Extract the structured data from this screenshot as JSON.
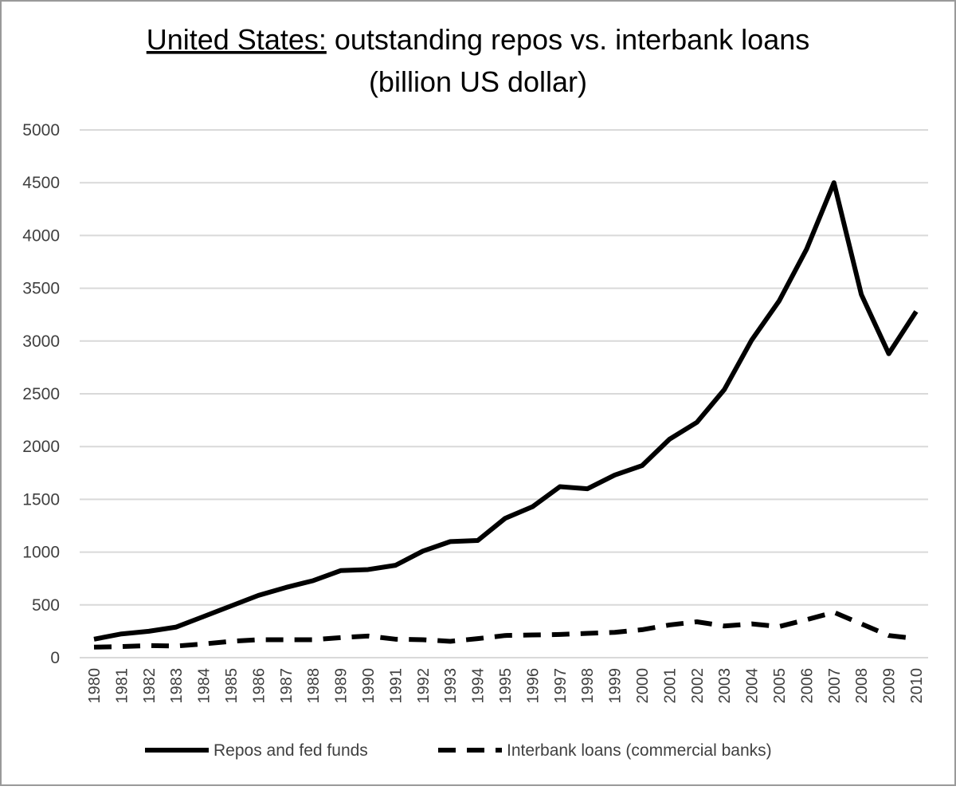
{
  "chart_data": {
    "type": "line",
    "title": {
      "emphasis": "United States:",
      "text": "outstanding repos vs. interbank loans"
    },
    "subtitle": "(billion US dollar)",
    "categories": [
      "1980",
      "1981",
      "1982",
      "1983",
      "1984",
      "1985",
      "1986",
      "1987",
      "1988",
      "1989",
      "1990",
      "1991",
      "1992",
      "1993",
      "1994",
      "1995",
      "1996",
      "1997",
      "1998",
      "1999",
      "2000",
      "2001",
      "2002",
      "2003",
      "2004",
      "2005",
      "2006",
      "2007",
      "2008",
      "2009",
      "2010"
    ],
    "series": [
      {
        "name": "Repos and fed funds",
        "color": "#000000",
        "dash": "solid",
        "values": [
          175,
          225,
          250,
          290,
          390,
          490,
          590,
          665,
          730,
          825,
          835,
          875,
          1010,
          1100,
          1110,
          1320,
          1430,
          1620,
          1600,
          1730,
          1820,
          2070,
          2230,
          2540,
          3010,
          3380,
          3870,
          4500,
          3440,
          2880,
          3280
        ]
      },
      {
        "name": "Interbank loans (commercial banks)",
        "color": "#000000",
        "dash": "dashed",
        "values": [
          100,
          105,
          115,
          110,
          130,
          155,
          170,
          170,
          170,
          190,
          205,
          175,
          170,
          155,
          180,
          210,
          215,
          220,
          230,
          240,
          265,
          310,
          340,
          300,
          320,
          295,
          360,
          430,
          320,
          210,
          180
        ]
      }
    ],
    "ylim": [
      0,
      5000
    ],
    "yticks": [
      0,
      500,
      1000,
      1500,
      2000,
      2500,
      3000,
      3500,
      4000,
      4500,
      5000
    ],
    "grid": true,
    "legend": "bottom"
  }
}
